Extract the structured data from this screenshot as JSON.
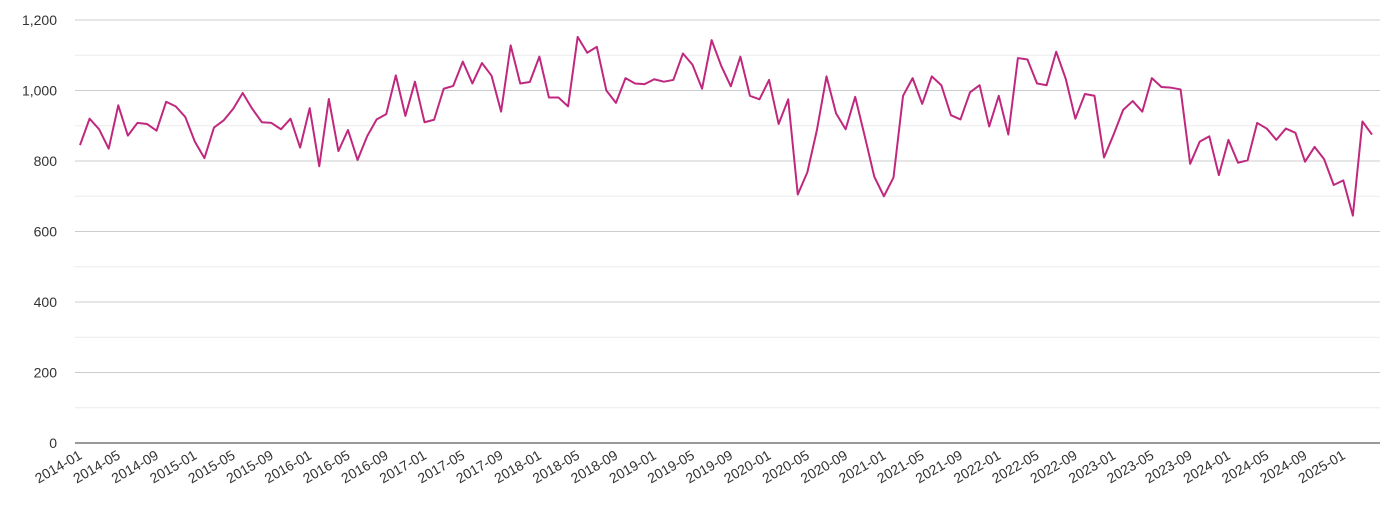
{
  "chart_data": {
    "type": "line",
    "title": "",
    "xlabel": "",
    "ylabel": "",
    "ylim": [
      0,
      1200
    ],
    "y_ticks": [
      "0",
      "200",
      "400",
      "600",
      "800",
      "1,000",
      "1,200"
    ],
    "y_tick_values": [
      0,
      200,
      400,
      600,
      800,
      1000,
      1200
    ],
    "x_tick_labels": [
      "2014-01",
      "2014-05",
      "2014-09",
      "2015-01",
      "2015-05",
      "2015-09",
      "2016-01",
      "2016-05",
      "2016-09",
      "2017-01",
      "2017-05",
      "2017-09",
      "2018-01",
      "2018-05",
      "2018-09",
      "2019-01",
      "2019-05",
      "2019-09",
      "2020-01",
      "2020-05",
      "2020-09",
      "2021-01",
      "2021-05",
      "2021-09",
      "2022-01",
      "2022-05",
      "2022-09",
      "2023-01",
      "2023-05",
      "2023-09",
      "2024-01",
      "2024-05",
      "2024-09",
      "2025-01"
    ],
    "grid": "horizontal",
    "line_color": "#c0287f",
    "start_month": "2014-01",
    "series": [
      {
        "values": [
          845,
          920,
          890,
          835,
          958,
          872,
          908,
          905,
          886,
          968,
          955,
          925,
          855,
          808,
          895,
          915,
          948,
          993,
          948,
          910,
          908,
          890,
          920,
          838,
          950,
          785,
          976,
          828,
          888,
          803,
          870,
          918,
          933,
          1043,
          928,
          1025,
          910,
          917,
          1005,
          1013,
          1082,
          1020,
          1078,
          1042,
          940,
          1128,
          1020,
          1024,
          1096,
          980,
          980,
          955,
          1152,
          1107,
          1124,
          1000,
          965,
          1035,
          1020,
          1018,
          1032,
          1025,
          1030,
          1105,
          1073,
          1005,
          1143,
          1070,
          1012,
          1096,
          985,
          975,
          1030,
          905,
          975,
          705,
          768,
          888,
          1040,
          935,
          890,
          982,
          870,
          755,
          700,
          753,
          985,
          1035,
          962,
          1040,
          1015,
          930,
          918,
          995,
          1015,
          898,
          985,
          875,
          1092,
          1088,
          1020,
          1015,
          1110,
          1033,
          920,
          990,
          985,
          810,
          875,
          945,
          970,
          940,
          1035,
          1010,
          1008,
          1003,
          792,
          855,
          870,
          760,
          860,
          795,
          802,
          908,
          892,
          860,
          892,
          880,
          798,
          840,
          805,
          732,
          745,
          645,
          912,
          875
        ]
      }
    ]
  }
}
